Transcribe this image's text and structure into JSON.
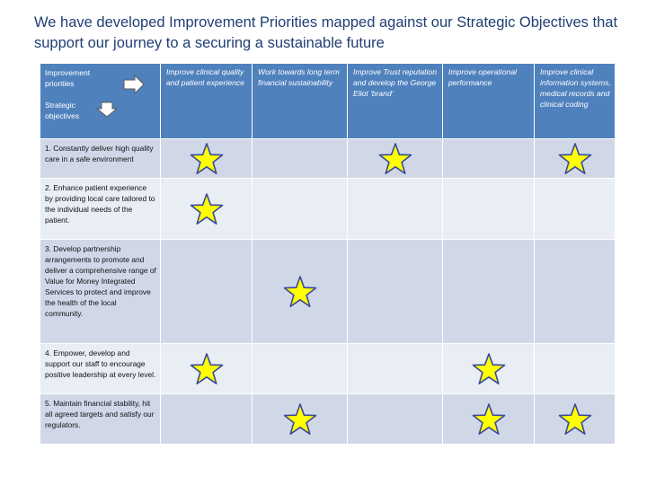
{
  "title": "We have developed Improvement Priorities mapped against our Strategic Objectives that support our journey to a securing a sustainable future",
  "corner": {
    "priorities_label": "Improvement priorities",
    "objectives_label": "Strategic objectives",
    "right_arrow_icon": "arrow-right-icon",
    "down_arrow_icon": "arrow-down-icon"
  },
  "priorities": [
    "Improve clinical quality and patient experience",
    "Work towards long term financial sustainability",
    "Improve Trust reputation and develop the George Eliot 'brand'",
    "Improve operational performance",
    "Improve clinical information systems, medical records and clinical coding"
  ],
  "objectives": [
    {
      "label": "1. Constantly deliver high quality care in a safe environment",
      "stars": [
        true,
        false,
        true,
        false,
        true
      ]
    },
    {
      "label": "2. Enhance patient experience by providing local care tailored to the individual needs of the patient.",
      "stars": [
        true,
        false,
        false,
        false,
        false
      ]
    },
    {
      "label": "3. Develop partnership arrangements to promote and deliver a comprehensive range of Value for Money Integrated Services to protect and improve the health of the local community.",
      "stars": [
        false,
        true,
        false,
        false,
        false
      ]
    },
    {
      "label": "4. Empower, develop and support our staff to encourage positive leadership at every level.",
      "stars": [
        true,
        false,
        false,
        true,
        false
      ]
    },
    {
      "label": "5. Maintain financial stability, hit all agreed targets and satisfy our regulators.",
      "stars": [
        false,
        true,
        false,
        true,
        true
      ]
    }
  ],
  "colors": {
    "header_bg": "#4f81bd",
    "row_odd": "#d0d8e8",
    "row_even": "#e9edf4",
    "star_fill": "#ffff00",
    "star_stroke": "#3a4a9a",
    "title": "#1f3f73"
  },
  "icons": {
    "mapping_mark": "star-icon"
  }
}
